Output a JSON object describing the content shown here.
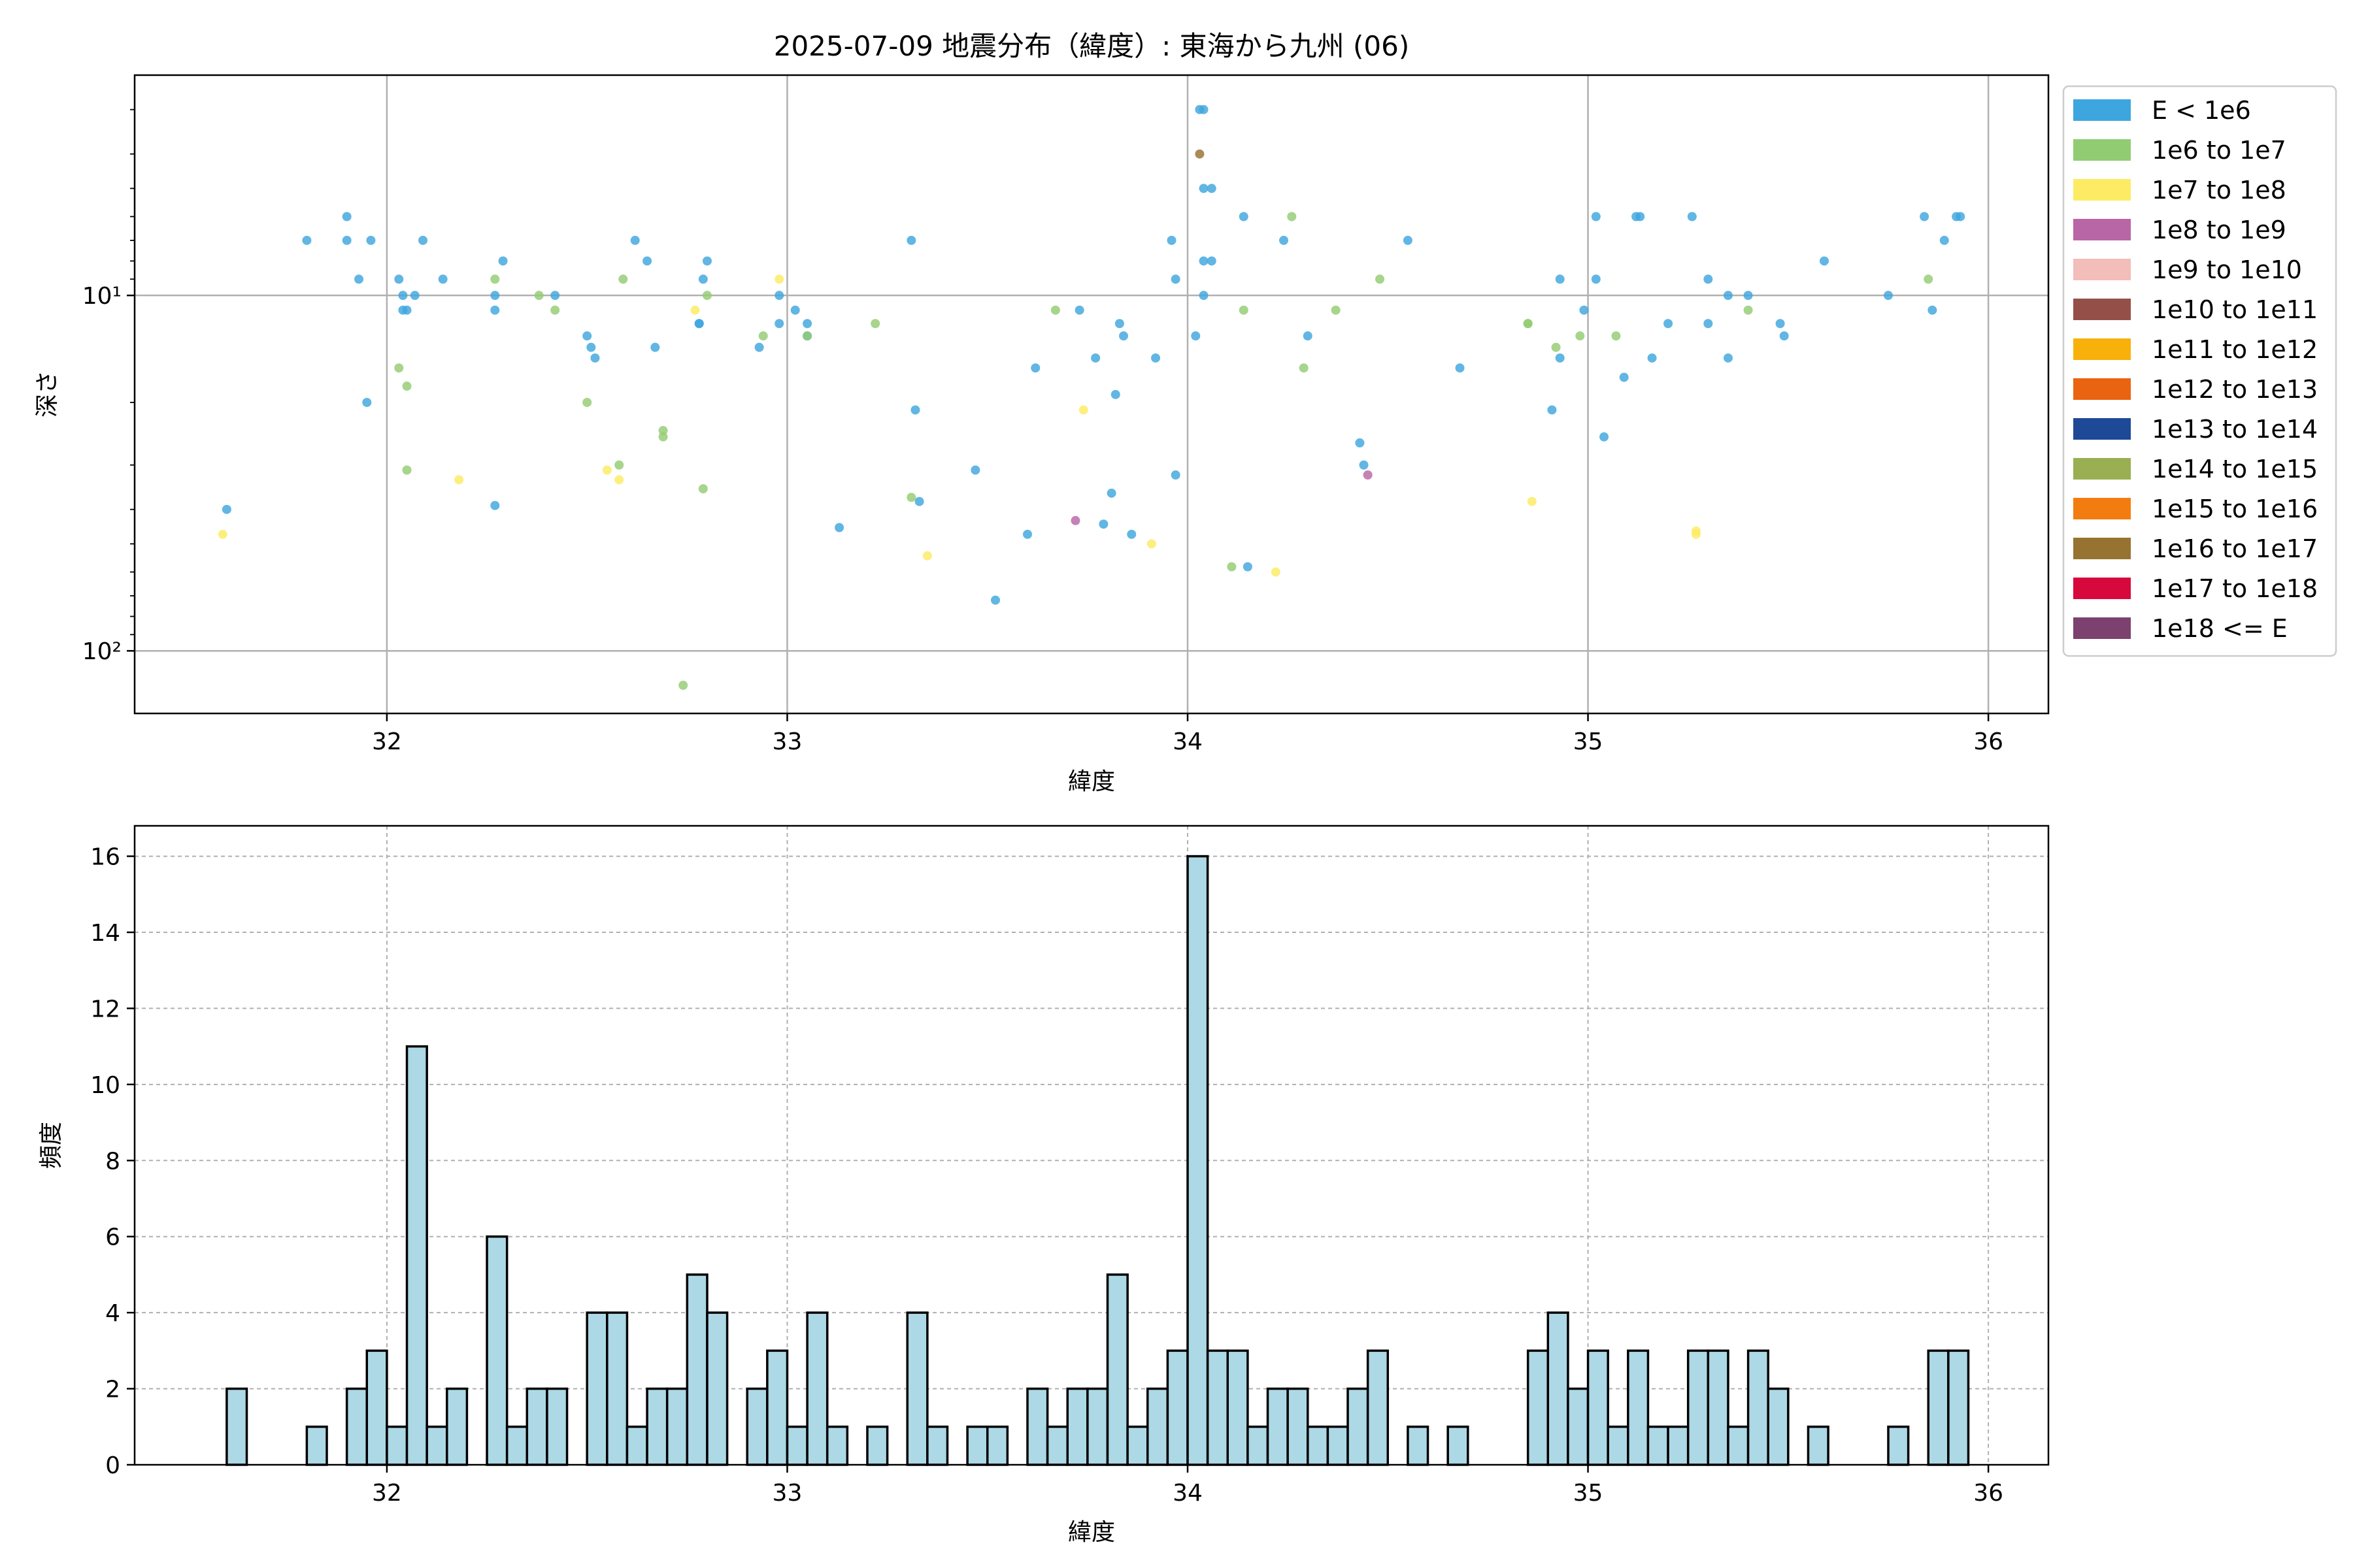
{
  "title": "2025-07-09 地震分布（緯度）: 東海から九州 (06)",
  "scatter_panel": {
    "xlabel": "緯度",
    "ylabel": "深さ"
  },
  "hist_panel": {
    "xlabel": "緯度",
    "ylabel": "頻度"
  },
  "legend": [
    {
      "label": "E < 1e6",
      "color": "#3ea6de"
    },
    {
      "label": "1e6 to 1e7",
      "color": "#92cc72"
    },
    {
      "label": "1e7 to 1e8",
      "color": "#fdec63"
    },
    {
      "label": "1e8 to 1e9",
      "color": "#b866a6"
    },
    {
      "label": "1e9 to 1e10",
      "color": "#f3bdb9"
    },
    {
      "label": "1e10 to 1e11",
      "color": "#945048"
    },
    {
      "label": "1e11 to 1e12",
      "color": "#f8b10a"
    },
    {
      "label": "1e12 to 1e13",
      "color": "#e96311"
    },
    {
      "label": "1e13 to 1e14",
      "color": "#1e4997"
    },
    {
      "label": "1e14 to 1e15",
      "color": "#9aae52"
    },
    {
      "label": "1e15 to 1e16",
      "color": "#f27c0f"
    },
    {
      "label": "1e16 to 1e17",
      "color": "#977332"
    },
    {
      "label": "1e17 to 1e18",
      "color": "#d7093c"
    },
    {
      "label": "1e18 <= E",
      "color": "#7c416f"
    }
  ],
  "chart_data": [
    {
      "type": "scatter",
      "title": "2025-07-09 地震分布（緯度）: 東海から九州 (06)",
      "xlabel": "緯度",
      "ylabel": "深さ",
      "xlim": [
        31.37,
        36.15
      ],
      "ylim": [
        150,
        2.4
      ],
      "y_scale": "log",
      "y_inverted": true,
      "x_ticks": [
        32,
        33,
        34,
        35,
        36
      ],
      "y_ticks": [
        10,
        100
      ],
      "y_tick_labels": [
        "10¹",
        "10²"
      ],
      "grid": true,
      "legend_position": "outside-right",
      "series": [
        {
          "name": "E < 1e6",
          "color": "#3ea6de",
          "points": [
            [
              31.6,
              40
            ],
            [
              31.8,
              7
            ],
            [
              31.9,
              6
            ],
            [
              31.9,
              7
            ],
            [
              31.93,
              9
            ],
            [
              31.95,
              20
            ],
            [
              31.96,
              7
            ],
            [
              32.03,
              9
            ],
            [
              32.04,
              10
            ],
            [
              32.04,
              11
            ],
            [
              32.05,
              11
            ],
            [
              32.07,
              10
            ],
            [
              32.09,
              7
            ],
            [
              32.14,
              9
            ],
            [
              32.27,
              10
            ],
            [
              32.27,
              11
            ],
            [
              32.27,
              39
            ],
            [
              32.29,
              8
            ],
            [
              32.42,
              10
            ],
            [
              32.5,
              13
            ],
            [
              32.51,
              14
            ],
            [
              32.52,
              15
            ],
            [
              32.62,
              7
            ],
            [
              32.65,
              8
            ],
            [
              32.67,
              14
            ],
            [
              32.78,
              12
            ],
            [
              32.78,
              12
            ],
            [
              32.79,
              9
            ],
            [
              32.8,
              8
            ],
            [
              32.93,
              14
            ],
            [
              32.98,
              10
            ],
            [
              32.98,
              12
            ],
            [
              33.02,
              11
            ],
            [
              33.05,
              12
            ],
            [
              33.05,
              13
            ],
            [
              33.13,
              45
            ],
            [
              33.31,
              7
            ],
            [
              33.32,
              21
            ],
            [
              33.33,
              38
            ],
            [
              33.47,
              31
            ],
            [
              33.52,
              72
            ],
            [
              33.6,
              47
            ],
            [
              33.62,
              16
            ],
            [
              33.73,
              11
            ],
            [
              33.77,
              15
            ],
            [
              33.79,
              44
            ],
            [
              33.81,
              36
            ],
            [
              33.82,
              19
            ],
            [
              33.83,
              12
            ],
            [
              33.84,
              13
            ],
            [
              33.86,
              47
            ],
            [
              33.92,
              15
            ],
            [
              33.96,
              7
            ],
            [
              33.97,
              32
            ],
            [
              33.97,
              9
            ],
            [
              34.02,
              13
            ],
            [
              34.03,
              3
            ],
            [
              34.04,
              3
            ],
            [
              34.04,
              5
            ],
            [
              34.04,
              10
            ],
            [
              34.04,
              8
            ],
            [
              34.06,
              5
            ],
            [
              34.06,
              8
            ],
            [
              34.14,
              6
            ],
            [
              34.15,
              58
            ],
            [
              34.24,
              7
            ],
            [
              34.3,
              13
            ],
            [
              34.43,
              26
            ],
            [
              34.44,
              30
            ],
            [
              34.55,
              7
            ],
            [
              34.68,
              16
            ],
            [
              34.91,
              21
            ],
            [
              34.93,
              9
            ],
            [
              34.93,
              15
            ],
            [
              34.99,
              11
            ],
            [
              35.02,
              6
            ],
            [
              35.02,
              9
            ],
            [
              35.04,
              25
            ],
            [
              35.09,
              17
            ],
            [
              35.12,
              6
            ],
            [
              35.13,
              6
            ],
            [
              35.16,
              15
            ],
            [
              35.2,
              12
            ],
            [
              35.26,
              6
            ],
            [
              35.3,
              9
            ],
            [
              35.3,
              12
            ],
            [
              35.35,
              10
            ],
            [
              35.35,
              15
            ],
            [
              35.4,
              10
            ],
            [
              35.48,
              12
            ],
            [
              35.49,
              13
            ],
            [
              35.59,
              8
            ],
            [
              35.75,
              10
            ],
            [
              35.84,
              6
            ],
            [
              35.86,
              11
            ],
            [
              35.89,
              7
            ],
            [
              35.92,
              6
            ],
            [
              35.93,
              6
            ]
          ]
        },
        {
          "name": "1e6 to 1e7",
          "color": "#92cc72",
          "points": [
            [
              32.03,
              16
            ],
            [
              32.05,
              18
            ],
            [
              32.05,
              31
            ],
            [
              32.27,
              9
            ],
            [
              32.38,
              10
            ],
            [
              32.42,
              11
            ],
            [
              32.5,
              20
            ],
            [
              32.58,
              30
            ],
            [
              32.59,
              9
            ],
            [
              32.69,
              24
            ],
            [
              32.69,
              25
            ],
            [
              32.74,
              125
            ],
            [
              32.79,
              35
            ],
            [
              32.8,
              10
            ],
            [
              32.94,
              13
            ],
            [
              33.05,
              13
            ],
            [
              33.22,
              12
            ],
            [
              33.31,
              37
            ],
            [
              33.67,
              11
            ],
            [
              34.11,
              58
            ],
            [
              34.14,
              11
            ],
            [
              34.26,
              6
            ],
            [
              34.29,
              16
            ],
            [
              34.37,
              11
            ],
            [
              34.48,
              9
            ],
            [
              34.85,
              12
            ],
            [
              34.85,
              12
            ],
            [
              34.92,
              14
            ],
            [
              34.98,
              13
            ],
            [
              35.07,
              13
            ],
            [
              35.4,
              11
            ],
            [
              35.85,
              9
            ]
          ]
        },
        {
          "name": "1e7 to 1e8",
          "color": "#fdec63",
          "points": [
            [
              31.59,
              47
            ],
            [
              32.18,
              33
            ],
            [
              32.55,
              31
            ],
            [
              32.58,
              33
            ],
            [
              32.77,
              11
            ],
            [
              32.98,
              9
            ],
            [
              33.35,
              54
            ],
            [
              33.74,
              21
            ],
            [
              33.91,
              50
            ],
            [
              34.22,
              60
            ],
            [
              34.86,
              38
            ],
            [
              35.27,
              46
            ],
            [
              35.27,
              47
            ]
          ]
        },
        {
          "name": "1e8 to 1e9",
          "color": "#b866a6",
          "points": [
            [
              33.72,
              43
            ],
            [
              34.45,
              32
            ]
          ]
        },
        {
          "name": "1e16 to 1e17",
          "color": "#977332",
          "points": [
            [
              34.03,
              4
            ]
          ]
        }
      ]
    },
    {
      "type": "bar",
      "title": "",
      "xlabel": "緯度",
      "ylabel": "頻度",
      "xlim": [
        31.37,
        36.15
      ],
      "ylim": [
        0,
        16.8
      ],
      "x_ticks": [
        32,
        33,
        34,
        35,
        36
      ],
      "y_ticks": [
        0,
        2,
        4,
        6,
        8,
        10,
        12,
        14,
        16
      ],
      "grid": true,
      "bin_edges": [
        31.6,
        31.65,
        31.7,
        31.75,
        31.8,
        31.85,
        31.9,
        31.95,
        32.0,
        32.05,
        32.1,
        32.15,
        32.2,
        32.25,
        32.3,
        32.35,
        32.4,
        32.45,
        32.5,
        32.55,
        32.6,
        32.65,
        32.7,
        32.75,
        32.8,
        32.85,
        32.9,
        32.95,
        33.0,
        33.05,
        33.1,
        33.15,
        33.2,
        33.25,
        33.3,
        33.35,
        33.4,
        33.45,
        33.5,
        33.55,
        33.6,
        33.65,
        33.7,
        33.75,
        33.8,
        33.85,
        33.9,
        33.95,
        34.0,
        34.05,
        34.1,
        34.15,
        34.2,
        34.25,
        34.3,
        34.35,
        34.4,
        34.45,
        34.5,
        34.55,
        34.6,
        34.65,
        34.7,
        34.75,
        34.8,
        34.85,
        34.9,
        34.95,
        35.0,
        35.05,
        35.1,
        35.15,
        35.2,
        35.25,
        35.3,
        35.35,
        35.4,
        35.45,
        35.5,
        35.55,
        35.6,
        35.65,
        35.7,
        35.75,
        35.8,
        35.85,
        35.9,
        35.95
      ],
      "counts": [
        2,
        0,
        0,
        0,
        1,
        0,
        2,
        3,
        1,
        11,
        1,
        2,
        0,
        6,
        1,
        2,
        2,
        0,
        4,
        4,
        1,
        2,
        2,
        5,
        4,
        0,
        2,
        3,
        1,
        4,
        1,
        0,
        1,
        0,
        4,
        1,
        0,
        1,
        1,
        0,
        2,
        1,
        2,
        2,
        5,
        1,
        2,
        3,
        16,
        3,
        3,
        1,
        2,
        2,
        1,
        1,
        2,
        3,
        0,
        1,
        0,
        1,
        0,
        0,
        0,
        3,
        4,
        2,
        3,
        1,
        3,
        1,
        1,
        3,
        3,
        1,
        3,
        2,
        0,
        1,
        0,
        0,
        0,
        1,
        0,
        3,
        3
      ]
    }
  ]
}
